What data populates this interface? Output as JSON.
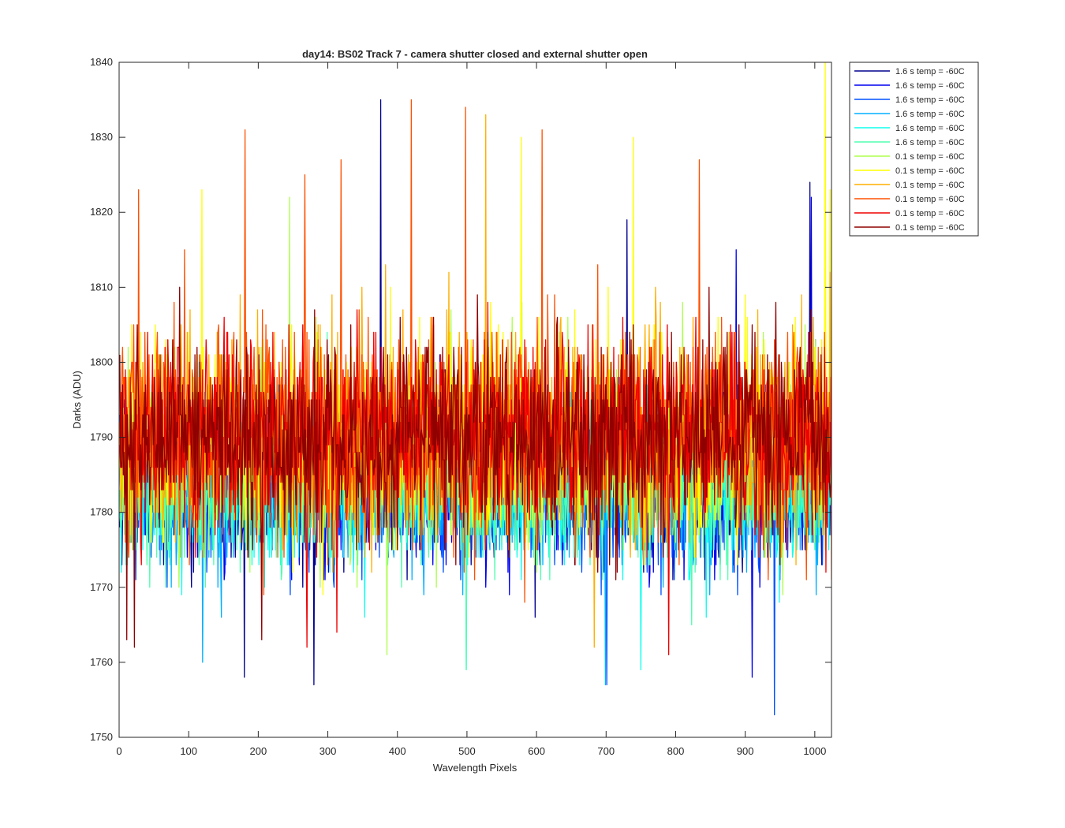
{
  "chart_data": {
    "type": "line",
    "title": "day14: BS02  Track 7 - camera shutter closed and external shutter open",
    "xlabel": "Wavelength Pixels",
    "ylabel": "Darks (ADU)",
    "xlim": [
      0,
      1024
    ],
    "ylim": [
      1750,
      1840
    ],
    "xticks": [
      0,
      100,
      200,
      300,
      400,
      500,
      600,
      700,
      800,
      900,
      1000
    ],
    "yticks": [
      1750,
      1760,
      1770,
      1780,
      1790,
      1800,
      1810,
      1820,
      1830,
      1840
    ],
    "grid": false,
    "legend_position": "outside-top-right",
    "x_range_per_series": [
      1,
      1024
    ],
    "series": [
      {
        "name": "1.6 s temp = -60C",
        "color": "#00008f",
        "mean": 1783.8,
        "sd": 5.0,
        "min": 1757,
        "max": 1835,
        "seed": 11,
        "peaks": [
          [
            180,
            1758
          ],
          [
            280,
            1757
          ],
          [
            376,
            1835
          ],
          [
            730,
            1819
          ],
          [
            993,
            1824
          ],
          [
            1001,
            1803
          ]
        ]
      },
      {
        "name": "1.6 s temp = -60C",
        "color": "#0000ef",
        "mean": 1783.5,
        "sd": 5.0,
        "min": 1758,
        "max": 1822,
        "seed": 23,
        "peaks": [
          [
            910,
            1758
          ],
          [
            995,
            1822
          ],
          [
            887,
            1815
          ]
        ]
      },
      {
        "name": "1.6 s temp = -60C",
        "color": "#0050ff",
        "mean": 1783.3,
        "sd": 5.0,
        "min": 1753,
        "max": 1815,
        "seed": 37,
        "peaks": [
          [
            942,
            1753
          ],
          [
            701,
            1757
          ]
        ]
      },
      {
        "name": "1.6 s temp = -60C",
        "color": "#00afff",
        "mean": 1783.2,
        "sd": 5.0,
        "min": 1757,
        "max": 1812,
        "seed": 41,
        "peaks": [
          [
            699,
            1757
          ],
          [
            120,
            1760
          ]
        ]
      },
      {
        "name": "1.6 s temp = -60C",
        "color": "#0fffef",
        "mean": 1783.4,
        "sd": 5.0,
        "min": 1759,
        "max": 1812,
        "seed": 53,
        "peaks": [
          [
            750,
            1759
          ],
          [
            499,
            1759
          ]
        ]
      },
      {
        "name": "1.6 s temp = -60C",
        "color": "#50ffaf",
        "mean": 1783.5,
        "sd": 5.0,
        "min": 1759,
        "max": 1813,
        "seed": 67,
        "peaks": [
          [
            499,
            1759
          ]
        ]
      },
      {
        "name": "0.1 s temp = -60C",
        "color": "#afff50",
        "mean": 1788.0,
        "sd": 6.0,
        "min": 1761,
        "max": 1822,
        "seed": 71,
        "peaks": [
          [
            385,
            1761
          ],
          [
            245,
            1822
          ]
        ]
      },
      {
        "name": "0.1 s temp = -60C",
        "color": "#ffff00",
        "mean": 1789.5,
        "sd": 7.0,
        "min": 1762,
        "max": 1840,
        "seed": 83,
        "peaks": [
          [
            1015,
            1840
          ],
          [
            1022,
            1823
          ],
          [
            119,
            1823
          ],
          [
            578,
            1830
          ],
          [
            739,
            1830
          ]
        ]
      },
      {
        "name": "0.1 s temp = -60C",
        "color": "#ffaf00",
        "mean": 1790.0,
        "sd": 7.0,
        "min": 1762,
        "max": 1834,
        "seed": 97,
        "peaks": [
          [
            527,
            1833
          ],
          [
            683,
            1762
          ]
        ]
      },
      {
        "name": "0.1 s temp = -60C",
        "color": "#ff5000",
        "mean": 1791.0,
        "sd": 7.5,
        "min": 1762,
        "max": 1835,
        "seed": 101,
        "peaks": [
          [
            420,
            1835
          ],
          [
            498,
            1834
          ],
          [
            181,
            1831
          ],
          [
            608,
            1831
          ],
          [
            28,
            1823
          ],
          [
            319,
            1827
          ],
          [
            834,
            1827
          ],
          [
            267,
            1825
          ]
        ]
      },
      {
        "name": "0.1 s temp = -60C",
        "color": "#ef0000",
        "mean": 1790.5,
        "sd": 6.5,
        "min": 1761,
        "max": 1820,
        "seed": 113,
        "peaks": [
          [
            790,
            1761
          ],
          [
            270,
            1762
          ]
        ]
      },
      {
        "name": "0.1 s temp = -60C",
        "color": "#8f0000",
        "mean": 1790.5,
        "sd": 6.5,
        "min": 1762,
        "max": 1818,
        "seed": 127,
        "peaks": [
          [
            11,
            1763
          ],
          [
            22,
            1762
          ],
          [
            205,
            1763
          ]
        ]
      }
    ]
  }
}
